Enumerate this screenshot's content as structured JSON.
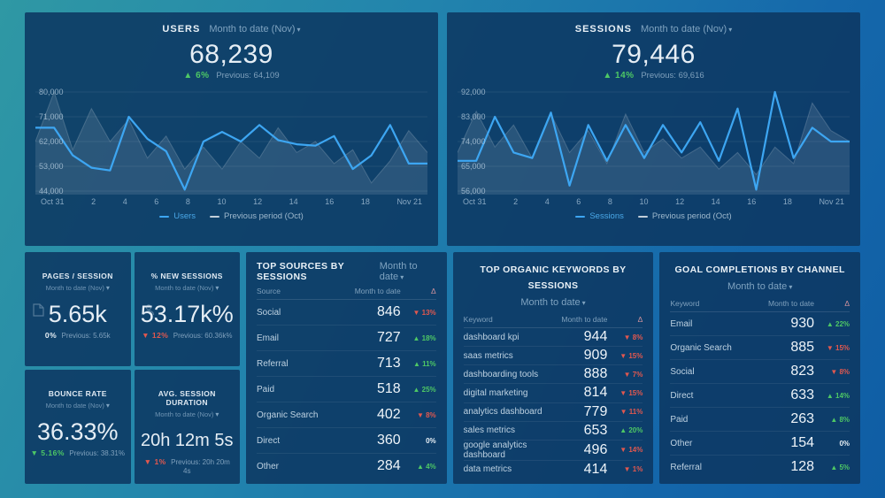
{
  "theme": {
    "accent_blue": "#3da6f2",
    "green": "#4ec865",
    "red": "#e2584f",
    "prev_gray": "rgba(255,255,255,0.55)"
  },
  "charts": [
    {
      "title": "USERS",
      "period": "Month to date (Nov)",
      "value": "68,239",
      "delta": {
        "text": "6%",
        "dir": "up",
        "color": "green"
      },
      "previous": "Previous: 64,109",
      "chart_data": {
        "type": "line",
        "title": "Users month to date",
        "x_ticks": [
          "Oct 31",
          "2",
          "4",
          "6",
          "8",
          "10",
          "12",
          "14",
          "16",
          "18",
          "Nov 21"
        ],
        "y_ticks": [
          "80,000",
          "71,000",
          "62,000",
          "53,000",
          "44,000"
        ],
        "ylim": [
          44000,
          80000
        ],
        "legend_position": "bottom",
        "series": [
          {
            "name": "Users",
            "color": "#3da6f2",
            "values": [
              67000,
              67000,
              57000,
              52500,
              51500,
              71000,
              63000,
              58500,
              44500,
              62000,
              65500,
              62000,
              68000,
              62500,
              61000,
              60500,
              64000,
              52000,
              57000,
              68000,
              54000,
              54000
            ]
          },
          {
            "name": "Previous period (Oct)",
            "color": "rgba(255,255,255,0.55)",
            "values": [
              62000,
              80000,
              59000,
              74000,
              62000,
              70000,
              56000,
              64000,
              52000,
              60000,
              52000,
              62000,
              56000,
              67000,
              58000,
              62000,
              54000,
              59000,
              47000,
              55000,
              66000,
              58000
            ]
          }
        ]
      }
    },
    {
      "title": "SESSIONS",
      "period": "Month to date (Nov)",
      "value": "79,446",
      "delta": {
        "text": "14%",
        "dir": "up",
        "color": "green"
      },
      "previous": "Previous: 69,616",
      "chart_data": {
        "type": "line",
        "title": "Sessions month to date",
        "x_ticks": [
          "Oct 31",
          "2",
          "4",
          "6",
          "8",
          "10",
          "12",
          "14",
          "16",
          "18",
          "Nov 21"
        ],
        "y_ticks": [
          "92,000",
          "83,000",
          "74,000",
          "65,000",
          "56,000"
        ],
        "ylim": [
          56000,
          92000
        ],
        "legend_position": "bottom",
        "series": [
          {
            "name": "Sessions",
            "color": "#3da6f2",
            "values": [
              67000,
              67000,
              83000,
              70000,
              68000,
              84500,
              58000,
              80000,
              67000,
              80000,
              68000,
              80000,
              70000,
              81000,
              67000,
              86000,
              56500,
              92000,
              68000,
              79000,
              74000,
              74000
            ]
          },
          {
            "name": "Previous period (Oct)",
            "color": "rgba(255,255,255,0.55)",
            "values": [
              70000,
              85000,
              72000,
              80000,
              68000,
              84000,
              70000,
              78000,
              66000,
              84000,
              70000,
              75000,
              68000,
              72000,
              64000,
              70000,
              62000,
              72000,
              66000,
              88000,
              78000,
              74000
            ]
          }
        ]
      }
    }
  ],
  "kpis": [
    {
      "title": "PAGES / SESSION",
      "period": "Month to date (Nov)",
      "icon": "page-icon",
      "value": "5.65k",
      "delta": {
        "text": "0%",
        "dir": "flat",
        "color": "white"
      },
      "previous": "Previous: 5.65k"
    },
    {
      "title": "% NEW SESSIONS",
      "period": "Month to date (Nov)",
      "icon": "person-icon",
      "value": "53.17k%",
      "delta": {
        "text": "12%",
        "dir": "down",
        "color": "red"
      },
      "previous": "Previous: 60.36k%"
    },
    {
      "title": "BOUNCE RATE",
      "period": "Month to date (Nov)",
      "value": "36.33%",
      "delta": {
        "text": "5.16%",
        "dir": "down",
        "color": "green"
      },
      "previous": "Previous: 38.31%"
    },
    {
      "title": "AVG. SESSION DURATION",
      "period": "Month to date (Nov)",
      "value": "20h 12m 5s",
      "delta": {
        "text": "1%",
        "dir": "down",
        "color": "red"
      },
      "previous": "Previous: 20h 20m 4s"
    }
  ],
  "tables": [
    {
      "title": "TOP SOURCES BY SESSIONS",
      "period": "Month to date",
      "columns": [
        "Source",
        "Month to date",
        "Δ"
      ],
      "rows": [
        {
          "label": "Social",
          "value": "846",
          "delta": {
            "text": "13%",
            "dir": "down",
            "color": "red"
          }
        },
        {
          "label": "Email",
          "value": "727",
          "delta": {
            "text": "18%",
            "dir": "up",
            "color": "green"
          }
        },
        {
          "label": "Referral",
          "value": "713",
          "delta": {
            "text": "11%",
            "dir": "up",
            "color": "green"
          }
        },
        {
          "label": "Paid",
          "value": "518",
          "delta": {
            "text": "25%",
            "dir": "up",
            "color": "green"
          }
        },
        {
          "label": "Organic Search",
          "value": "402",
          "delta": {
            "text": "8%",
            "dir": "down",
            "color": "red"
          }
        },
        {
          "label": "Direct",
          "value": "360",
          "delta": {
            "text": "0%",
            "dir": "flat",
            "color": "white"
          }
        },
        {
          "label": "Other",
          "value": "284",
          "delta": {
            "text": "4%",
            "dir": "up",
            "color": "green"
          }
        }
      ]
    },
    {
      "title": "TOP ORGANIC KEYWORDS BY SESSIONS",
      "period": "Month to date",
      "columns": [
        "Keyword",
        "Month to date",
        "Δ"
      ],
      "rows": [
        {
          "label": "dashboard kpi",
          "value": "944",
          "delta": {
            "text": "8%",
            "dir": "down",
            "color": "red"
          }
        },
        {
          "label": "saas metrics",
          "value": "909",
          "delta": {
            "text": "15%",
            "dir": "down",
            "color": "red"
          }
        },
        {
          "label": "dashboarding tools",
          "value": "888",
          "delta": {
            "text": "7%",
            "dir": "down",
            "color": "red"
          }
        },
        {
          "label": "digital marketing",
          "value": "814",
          "delta": {
            "text": "15%",
            "dir": "down",
            "color": "red"
          }
        },
        {
          "label": "analytics dashboard",
          "value": "779",
          "delta": {
            "text": "11%",
            "dir": "down",
            "color": "red"
          }
        },
        {
          "label": "sales metrics",
          "value": "653",
          "delta": {
            "text": "20%",
            "dir": "up",
            "color": "green"
          }
        },
        {
          "label": "google analytics dashboard",
          "value": "496",
          "delta": {
            "text": "14%",
            "dir": "down",
            "color": "red"
          }
        },
        {
          "label": "data metrics",
          "value": "414",
          "delta": {
            "text": "1%",
            "dir": "down",
            "color": "red"
          }
        }
      ]
    },
    {
      "title": "GOAL COMPLETIONS BY CHANNEL",
      "period": "Month to date",
      "columns": [
        "Keyword",
        "Month to date",
        "Δ"
      ],
      "rows": [
        {
          "label": "Email",
          "value": "930",
          "delta": {
            "text": "22%",
            "dir": "up",
            "color": "green"
          }
        },
        {
          "label": "Organic Search",
          "value": "885",
          "delta": {
            "text": "15%",
            "dir": "down",
            "color": "red"
          }
        },
        {
          "label": "Social",
          "value": "823",
          "delta": {
            "text": "8%",
            "dir": "down",
            "color": "red"
          }
        },
        {
          "label": "Direct",
          "value": "633",
          "delta": {
            "text": "14%",
            "dir": "up",
            "color": "green"
          }
        },
        {
          "label": "Paid",
          "value": "263",
          "delta": {
            "text": "8%",
            "dir": "up",
            "color": "green"
          }
        },
        {
          "label": "Other",
          "value": "154",
          "delta": {
            "text": "0%",
            "dir": "flat",
            "color": "white"
          }
        },
        {
          "label": "Referral",
          "value": "128",
          "delta": {
            "text": "5%",
            "dir": "up",
            "color": "green"
          }
        }
      ]
    }
  ]
}
